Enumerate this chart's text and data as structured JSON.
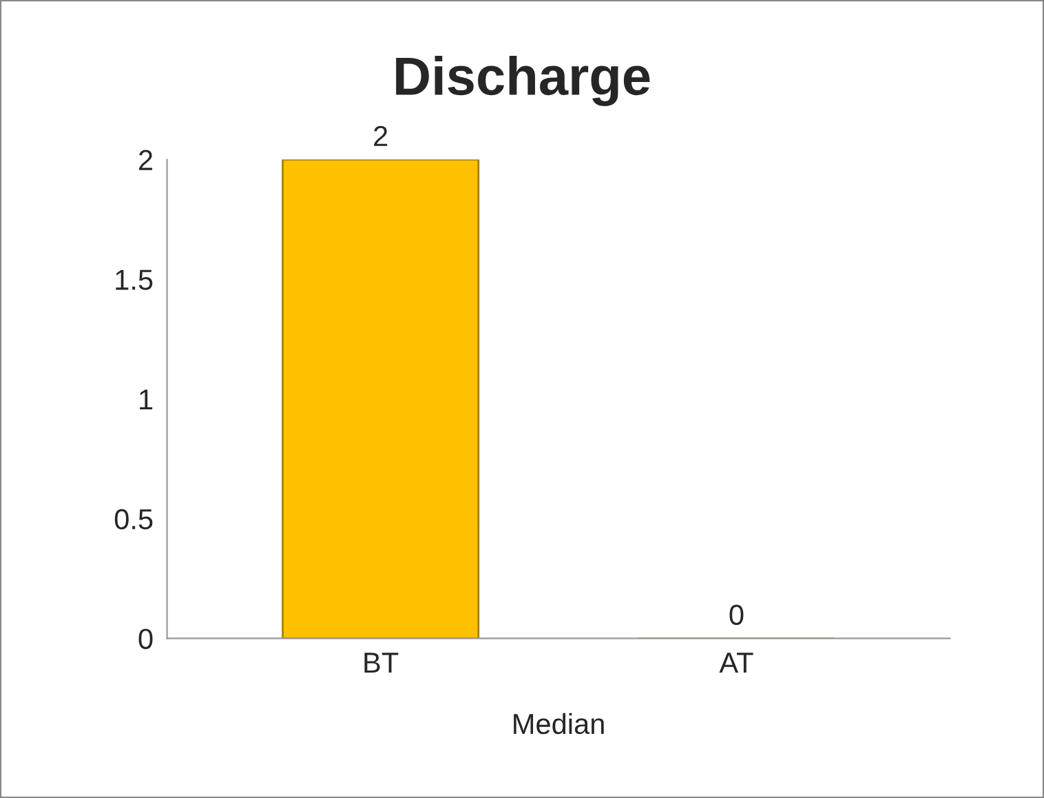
{
  "chart_data": {
    "type": "bar",
    "title": "Discharge",
    "xlabel": "Median",
    "categories": [
      "BT",
      "AT"
    ],
    "values": [
      2,
      0
    ],
    "color": "#ffc000",
    "ylim": [
      0,
      2
    ],
    "yticks": [
      0,
      0.5,
      1,
      1.5,
      2
    ],
    "data_labels": true,
    "grid": false
  }
}
